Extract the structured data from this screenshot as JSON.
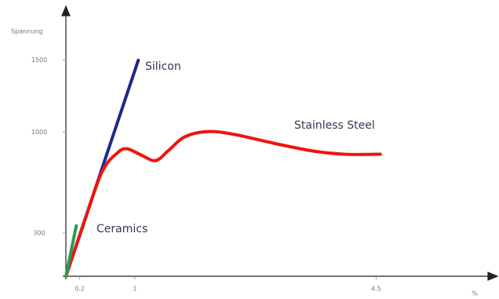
{
  "chart_data": {
    "type": "line",
    "y_label": "Spannung",
    "x_label": "%",
    "xlim": [
      0,
      6.1
    ],
    "ylim": [
      0,
      1820
    ],
    "xticks": [
      0.2,
      1,
      4.5
    ],
    "yticks": [
      300,
      1000,
      1500
    ],
    "series": [
      {
        "name": "Silicon",
        "color": "#1c2a8c",
        "x": [
          0,
          1.05
        ],
        "values": [
          0,
          1500
        ]
      },
      {
        "name": "Stainless Steel",
        "color": "#f0140c",
        "x": [
          0,
          0.24,
          0.52,
          0.75,
          0.89,
          1.09,
          1.3,
          1.49,
          1.72,
          2.06,
          2.45,
          3.02,
          3.59,
          4.05,
          4.56
        ],
        "values": [
          0,
          339,
          721,
          858,
          885,
          842,
          803,
          874,
          967,
          1005,
          984,
          923,
          869,
          847,
          847
        ]
      },
      {
        "name": "Ceramics",
        "color": "#2a9a5a",
        "x": [
          0,
          0.15
        ],
        "values": [
          0,
          350
        ]
      }
    ]
  }
}
